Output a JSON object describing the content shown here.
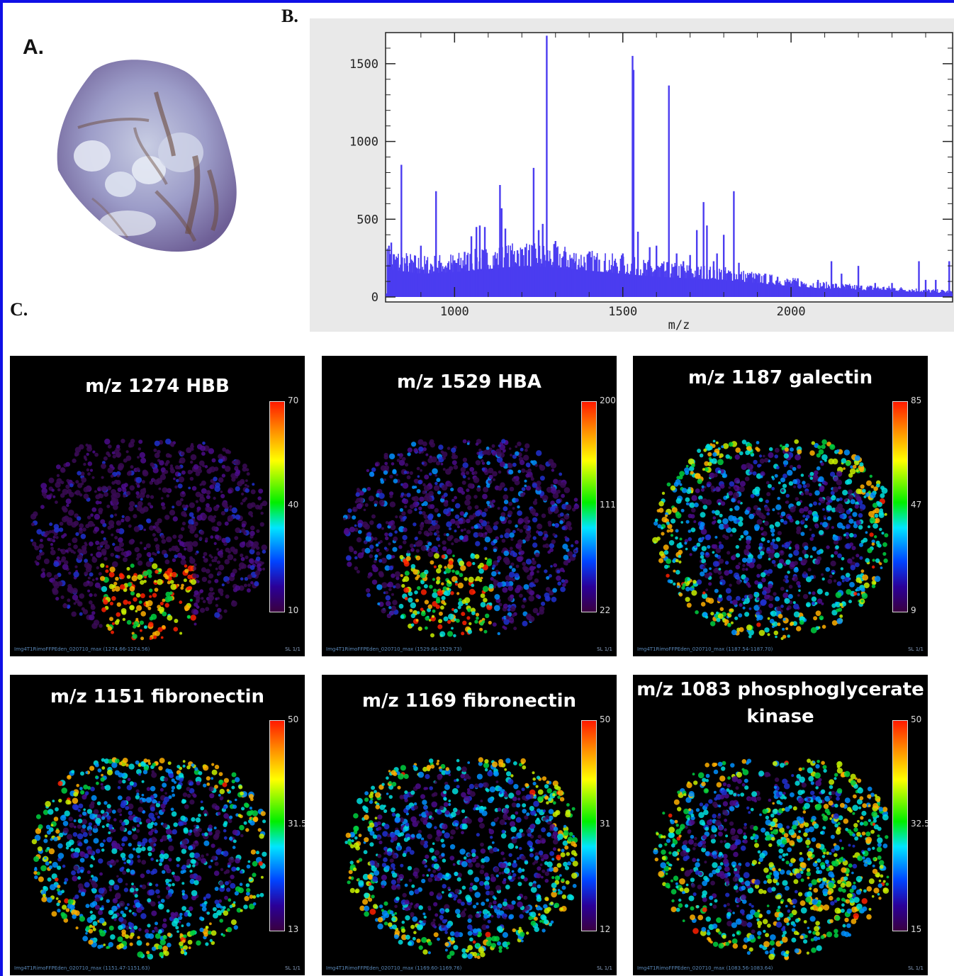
{
  "labels": {
    "a": "A.",
    "b": "B.",
    "c": "C."
  },
  "chart_data": [
    {
      "type": "line",
      "panel": "B.",
      "xlabel": "m/z",
      "ylabel": "",
      "xlim": [
        795,
        2480
      ],
      "ylim": [
        0,
        1700
      ],
      "x_ticks": [
        "1000",
        "1500",
        "2000"
      ],
      "y_ticks": [
        "0",
        "500",
        "1000",
        "1500"
      ],
      "baseline": [
        [
          800,
          180
        ],
        [
          900,
          150
        ],
        [
          1000,
          160
        ],
        [
          1100,
          180
        ],
        [
          1200,
          200
        ],
        [
          1300,
          190
        ],
        [
          1400,
          170
        ],
        [
          1500,
          150
        ],
        [
          1600,
          130
        ],
        [
          1700,
          120
        ],
        [
          1800,
          110
        ],
        [
          1900,
          90
        ],
        [
          2000,
          70
        ],
        [
          2100,
          55
        ],
        [
          2200,
          45
        ],
        [
          2300,
          40
        ],
        [
          2400,
          30
        ],
        [
          2480,
          25
        ]
      ],
      "peaks": [
        [
          805,
          330
        ],
        [
          812,
          350
        ],
        [
          820,
          250
        ],
        [
          842,
          850
        ],
        [
          860,
          200
        ],
        [
          900,
          330
        ],
        [
          945,
          680
        ],
        [
          960,
          220
        ],
        [
          990,
          220
        ],
        [
          1030,
          290
        ],
        [
          1050,
          390
        ],
        [
          1065,
          450
        ],
        [
          1075,
          460
        ],
        [
          1090,
          450
        ],
        [
          1120,
          270
        ],
        [
          1135,
          720
        ],
        [
          1140,
          570
        ],
        [
          1151,
          440
        ],
        [
          1170,
          300
        ],
        [
          1187,
          300
        ],
        [
          1210,
          320
        ],
        [
          1235,
          830
        ],
        [
          1250,
          430
        ],
        [
          1262,
          470
        ],
        [
          1274,
          1680
        ],
        [
          1300,
          360
        ],
        [
          1330,
          290
        ],
        [
          1360,
          230
        ],
        [
          1400,
          260
        ],
        [
          1430,
          240
        ],
        [
          1480,
          220
        ],
        [
          1500,
          280
        ],
        [
          1529,
          1550
        ],
        [
          1532,
          1460
        ],
        [
          1545,
          420
        ],
        [
          1580,
          320
        ],
        [
          1600,
          330
        ],
        [
          1637,
          1360
        ],
        [
          1660,
          280
        ],
        [
          1680,
          230
        ],
        [
          1700,
          270
        ],
        [
          1720,
          430
        ],
        [
          1740,
          610
        ],
        [
          1750,
          460
        ],
        [
          1770,
          230
        ],
        [
          1780,
          280
        ],
        [
          1800,
          400
        ],
        [
          1830,
          680
        ],
        [
          1845,
          220
        ],
        [
          1880,
          150
        ],
        [
          1920,
          140
        ],
        [
          1960,
          130
        ],
        [
          2020,
          120
        ],
        [
          2080,
          110
        ],
        [
          2120,
          230
        ],
        [
          2150,
          150
        ],
        [
          2200,
          200
        ],
        [
          2250,
          90
        ],
        [
          2300,
          90
        ],
        [
          2380,
          230
        ],
        [
          2400,
          110
        ],
        [
          2430,
          110
        ],
        [
          2470,
          230
        ]
      ],
      "line_color": "#4b3cf0"
    }
  ],
  "maps": [
    {
      "title": "m/z 1274 HBB",
      "cb_max": "70",
      "cb_mid": "40",
      "cb_min": "10",
      "file": "Img4T1RimoFFPEden_020710_max (1274.66-1274.56)",
      "sl": "SL 1/1"
    },
    {
      "title": "m/z 1529 HBA",
      "cb_max": "200",
      "cb_mid": "111",
      "cb_min": "22",
      "file": "Img4T1RimoFFPEden_020710_max (1529.64-1529.73)",
      "sl": "SL 1/1"
    },
    {
      "title": "m/z 1187 galectin",
      "cb_max": "85",
      "cb_mid": "47",
      "cb_min": "9",
      "file": "Img4T1RimoFFPEden_020710_max (1187.54-1187.70)",
      "sl": "SL 1/1"
    },
    {
      "title": "m/z 1151 fibronectin",
      "cb_max": "50",
      "cb_mid": "31.5",
      "cb_min": "13",
      "file": "Img4T1RimoFFPEden_020710_max (1151.47-1151.63)",
      "sl": "SL 1/1"
    },
    {
      "title": "m/z 1169 fibronectin",
      "cb_max": "50",
      "cb_mid": "31",
      "cb_min": "12",
      "file": "Img4T1RimoFFPEden_020710_max (1169.60-1169.76)",
      "sl": "SL 1/1"
    },
    {
      "title": "m/z 1083 phosphoglycerate\nkinase",
      "cb_max": "50",
      "cb_mid": "32.5",
      "cb_min": "15",
      "file": "Img4T1RimoFFPEden_020710_max (1083.56-1083.64)",
      "sl": "SL 1/1"
    }
  ]
}
